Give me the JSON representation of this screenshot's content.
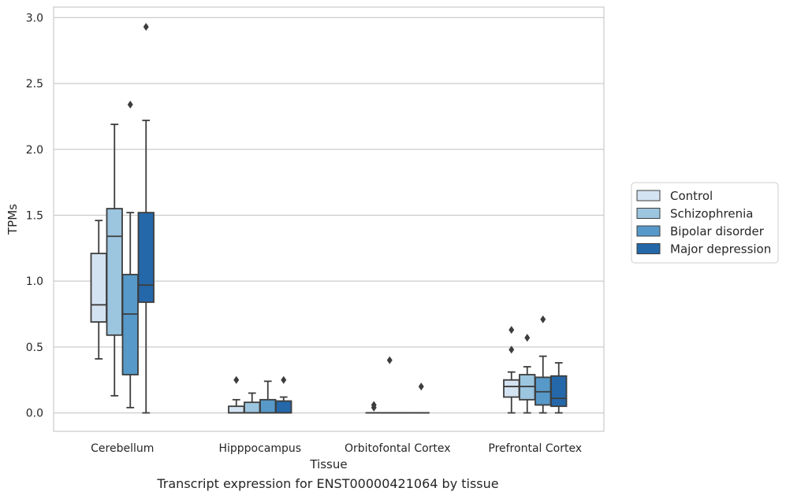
{
  "chart_data": {
    "type": "box",
    "title": "",
    "caption": "Transcript expression for ENST00000421064 by tissue",
    "xlabel": "Tissue",
    "ylabel": "TPMs",
    "ylim": [
      -0.14,
      3.08
    ],
    "yticks": [
      "0.0",
      "0.5",
      "1.0",
      "1.5",
      "2.0",
      "2.5",
      "3.0"
    ],
    "grid": "horizontal",
    "legend_position": "right",
    "categories": [
      "Cerebellum",
      "Hipppocampus",
      "Orbitofontal Cortex",
      "Prefrontal Cortex"
    ],
    "series": [
      {
        "name": "Control",
        "color": "#d4e3f1",
        "boxes": [
          {
            "whislo": 0.41,
            "q1": 0.69,
            "med": 0.82,
            "q3": 1.21,
            "whishi": 1.46,
            "fliers": []
          },
          {
            "whislo": 0.0,
            "q1": 0.0,
            "med": 0.0,
            "q3": 0.05,
            "whishi": 0.1,
            "fliers": [
              0.25
            ]
          },
          {
            "whislo": 0.0,
            "q1": 0.0,
            "med": 0.0,
            "q3": 0.0,
            "whishi": 0.0,
            "fliers": [
              0.04,
              0.06
            ]
          },
          {
            "whislo": 0.0,
            "q1": 0.12,
            "med": 0.2,
            "q3": 0.25,
            "whishi": 0.31,
            "fliers": [
              0.48,
              0.63
            ]
          }
        ]
      },
      {
        "name": "Schizophrenia",
        "color": "#9cc5df",
        "boxes": [
          {
            "whislo": 0.13,
            "q1": 0.59,
            "med": 1.34,
            "q3": 1.55,
            "whishi": 2.19,
            "fliers": []
          },
          {
            "whislo": 0.0,
            "q1": 0.0,
            "med": 0.0,
            "q3": 0.08,
            "whishi": 0.15,
            "fliers": []
          },
          {
            "whislo": 0.0,
            "q1": 0.0,
            "med": 0.0,
            "q3": 0.0,
            "whishi": 0.0,
            "fliers": [
              0.4
            ]
          },
          {
            "whislo": 0.0,
            "q1": 0.1,
            "med": 0.2,
            "q3": 0.29,
            "whishi": 0.35,
            "fliers": [
              0.57
            ]
          }
        ]
      },
      {
        "name": "Bipolar disorder",
        "color": "#5799c8",
        "boxes": [
          {
            "whislo": 0.04,
            "q1": 0.29,
            "med": 0.75,
            "q3": 1.05,
            "whishi": 1.52,
            "fliers": [
              2.34
            ]
          },
          {
            "whislo": 0.0,
            "q1": 0.0,
            "med": 0.0,
            "q3": 0.1,
            "whishi": 0.24,
            "fliers": []
          },
          {
            "whislo": 0.0,
            "q1": 0.0,
            "med": 0.0,
            "q3": 0.0,
            "whishi": 0.0,
            "fliers": []
          },
          {
            "whislo": 0.0,
            "q1": 0.06,
            "med": 0.16,
            "q3": 0.27,
            "whishi": 0.43,
            "fliers": [
              0.71
            ]
          }
        ]
      },
      {
        "name": "Major depression",
        "color": "#2468aa",
        "boxes": [
          {
            "whislo": 0.0,
            "q1": 0.84,
            "med": 0.97,
            "q3": 1.52,
            "whishi": 2.22,
            "fliers": [
              2.93
            ]
          },
          {
            "whislo": 0.0,
            "q1": 0.0,
            "med": 0.0,
            "q3": 0.09,
            "whishi": 0.12,
            "fliers": [
              0.25
            ]
          },
          {
            "whislo": 0.0,
            "q1": 0.0,
            "med": 0.0,
            "q3": 0.0,
            "whishi": 0.0,
            "fliers": [
              0.2
            ]
          },
          {
            "whislo": 0.0,
            "q1": 0.05,
            "med": 0.11,
            "q3": 0.28,
            "whishi": 0.38,
            "fliers": []
          }
        ]
      }
    ]
  }
}
